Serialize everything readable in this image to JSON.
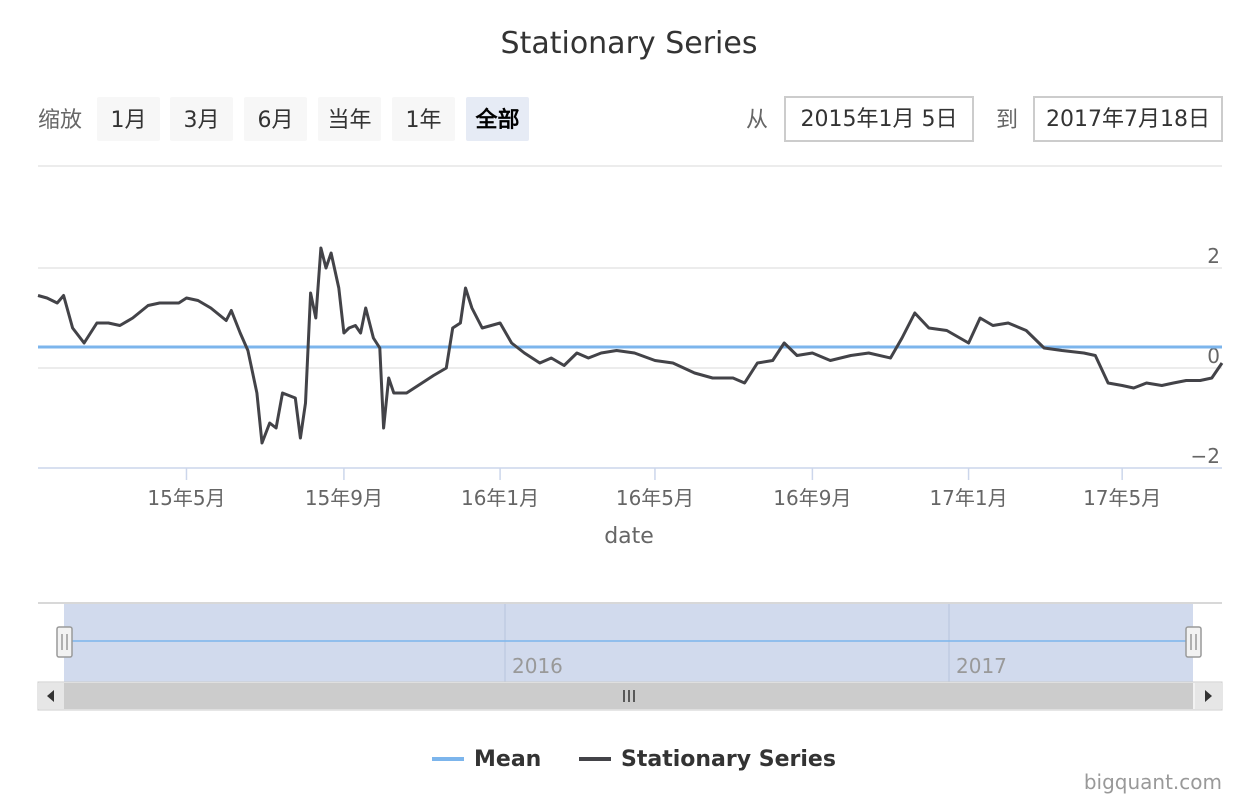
{
  "range_selector": {
    "zoom_label": "缩放",
    "buttons": [
      {
        "label": "1月",
        "selected": false
      },
      {
        "label": "3月",
        "selected": false
      },
      {
        "label": "6月",
        "selected": false
      },
      {
        "label": "当年",
        "selected": false
      },
      {
        "label": "1年",
        "selected": false
      },
      {
        "label": "全部",
        "selected": true
      }
    ],
    "from_label": "从",
    "from_value": "2015年1月 5日",
    "to_label": "到",
    "to_value": "2017年7月18日"
  },
  "navigator": {
    "year_labels": [
      "2016",
      "2017"
    ],
    "scroll_left_icon": "triangle-left-icon",
    "scroll_right_icon": "triangle-right-icon",
    "thumb_icon": "grip-lines-icon"
  },
  "credit": "bigquant.com",
  "colors": {
    "mean": "#7cb5ec",
    "series": "#434348",
    "grid": "#e6e6e6",
    "navigator_mask": "#ccd6eb"
  },
  "chart_data": {
    "type": "line",
    "title": "Stationary Series",
    "xlabel": "date",
    "ylabel": "",
    "x_range": [
      "2015-01-05",
      "2017-07-18"
    ],
    "ylim": [
      -2,
      4
    ],
    "y_ticks": [
      2,
      0,
      -2
    ],
    "x_ticks": [
      {
        "date": "2015-05-01",
        "label": "15年5月"
      },
      {
        "date": "2015-09-01",
        "label": "15年9月"
      },
      {
        "date": "2016-01-01",
        "label": "16年1月"
      },
      {
        "date": "2016-05-01",
        "label": "16年5月"
      },
      {
        "date": "2016-09-01",
        "label": "16年9月"
      },
      {
        "date": "2017-01-01",
        "label": "17年1月"
      },
      {
        "date": "2017-05-01",
        "label": "17年5月"
      }
    ],
    "legend_position": "bottom-center",
    "grid": true,
    "series": [
      {
        "name": "Mean",
        "points": [
          [
            "2015-01-05",
            0.42
          ],
          [
            "2017-07-18",
            0.42
          ]
        ]
      },
      {
        "name": "Stationary Series",
        "points": [
          [
            "2015-01-05",
            1.45
          ],
          [
            "2015-01-12",
            1.4
          ],
          [
            "2015-01-20",
            1.3
          ],
          [
            "2015-01-25",
            1.45
          ],
          [
            "2015-02-01",
            0.8
          ],
          [
            "2015-02-10",
            0.5
          ],
          [
            "2015-02-20",
            0.9
          ],
          [
            "2015-03-01",
            0.9
          ],
          [
            "2015-03-10",
            0.85
          ],
          [
            "2015-03-20",
            1.0
          ],
          [
            "2015-04-01",
            1.25
          ],
          [
            "2015-04-10",
            1.3
          ],
          [
            "2015-04-25",
            1.3
          ],
          [
            "2015-05-01",
            1.4
          ],
          [
            "2015-05-10",
            1.35
          ],
          [
            "2015-05-20",
            1.2
          ],
          [
            "2015-06-01",
            0.95
          ],
          [
            "2015-06-05",
            1.15
          ],
          [
            "2015-06-12",
            0.7
          ],
          [
            "2015-06-18",
            0.35
          ],
          [
            "2015-06-25",
            -0.5
          ],
          [
            "2015-06-29",
            -1.5
          ],
          [
            "2015-07-05",
            -1.1
          ],
          [
            "2015-07-10",
            -1.2
          ],
          [
            "2015-07-15",
            -0.5
          ],
          [
            "2015-07-25",
            -0.6
          ],
          [
            "2015-07-29",
            -1.4
          ],
          [
            "2015-08-02",
            -0.7
          ],
          [
            "2015-08-06",
            1.5
          ],
          [
            "2015-08-10",
            1.0
          ],
          [
            "2015-08-14",
            2.4
          ],
          [
            "2015-08-18",
            2.0
          ],
          [
            "2015-08-22",
            2.3
          ],
          [
            "2015-08-28",
            1.6
          ],
          [
            "2015-09-01",
            0.7
          ],
          [
            "2015-09-05",
            0.8
          ],
          [
            "2015-09-10",
            0.85
          ],
          [
            "2015-09-14",
            0.7
          ],
          [
            "2015-09-18",
            1.2
          ],
          [
            "2015-09-24",
            0.6
          ],
          [
            "2015-09-29",
            0.4
          ],
          [
            "2015-10-02",
            -1.2
          ],
          [
            "2015-10-06",
            -0.2
          ],
          [
            "2015-10-10",
            -0.5
          ],
          [
            "2015-10-20",
            -0.5
          ],
          [
            "2015-11-01",
            -0.3
          ],
          [
            "2015-11-10",
            -0.15
          ],
          [
            "2015-11-20",
            0.0
          ],
          [
            "2015-11-25",
            0.8
          ],
          [
            "2015-12-01",
            0.9
          ],
          [
            "2015-12-05",
            1.6
          ],
          [
            "2015-12-10",
            1.2
          ],
          [
            "2015-12-18",
            0.8
          ],
          [
            "2016-01-01",
            0.9
          ],
          [
            "2016-01-10",
            0.5
          ],
          [
            "2016-01-20",
            0.3
          ],
          [
            "2016-02-01",
            0.1
          ],
          [
            "2016-02-10",
            0.2
          ],
          [
            "2016-02-20",
            0.05
          ],
          [
            "2016-03-01",
            0.3
          ],
          [
            "2016-03-10",
            0.2
          ],
          [
            "2016-03-20",
            0.3
          ],
          [
            "2016-04-01",
            0.35
          ],
          [
            "2016-04-15",
            0.3
          ],
          [
            "2016-05-01",
            0.15
          ],
          [
            "2016-05-15",
            0.1
          ],
          [
            "2016-06-01",
            -0.1
          ],
          [
            "2016-06-15",
            -0.2
          ],
          [
            "2016-07-01",
            -0.2
          ],
          [
            "2016-07-10",
            -0.3
          ],
          [
            "2016-07-20",
            0.1
          ],
          [
            "2016-08-01",
            0.15
          ],
          [
            "2016-08-10",
            0.5
          ],
          [
            "2016-08-20",
            0.25
          ],
          [
            "2016-09-01",
            0.3
          ],
          [
            "2016-09-15",
            0.15
          ],
          [
            "2016-10-01",
            0.25
          ],
          [
            "2016-10-15",
            0.3
          ],
          [
            "2016-11-01",
            0.2
          ],
          [
            "2016-11-10",
            0.6
          ],
          [
            "2016-11-20",
            1.1
          ],
          [
            "2016-12-01",
            0.8
          ],
          [
            "2016-12-15",
            0.75
          ],
          [
            "2017-01-01",
            0.5
          ],
          [
            "2017-01-10",
            1.0
          ],
          [
            "2017-01-20",
            0.85
          ],
          [
            "2017-02-01",
            0.9
          ],
          [
            "2017-02-15",
            0.75
          ],
          [
            "2017-03-01",
            0.4
          ],
          [
            "2017-03-15",
            0.35
          ],
          [
            "2017-04-01",
            0.3
          ],
          [
            "2017-04-10",
            0.25
          ],
          [
            "2017-04-20",
            -0.3
          ],
          [
            "2017-05-01",
            -0.35
          ],
          [
            "2017-05-10",
            -0.4
          ],
          [
            "2017-05-20",
            -0.3
          ],
          [
            "2017-06-01",
            -0.35
          ],
          [
            "2017-06-10",
            -0.3
          ],
          [
            "2017-06-20",
            -0.25
          ],
          [
            "2017-07-01",
            -0.25
          ],
          [
            "2017-07-10",
            -0.2
          ],
          [
            "2017-07-18",
            0.1
          ]
        ]
      }
    ]
  }
}
